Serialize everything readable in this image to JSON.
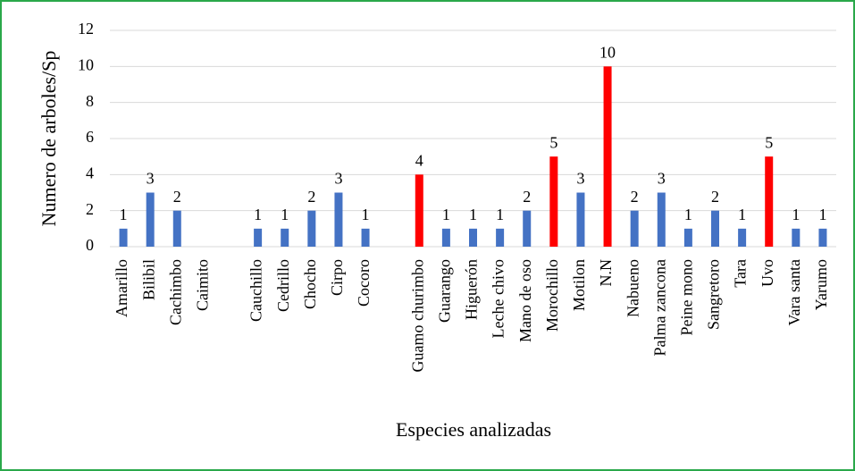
{
  "chart_data": {
    "type": "bar",
    "categories": [
      "Amarillo",
      "Bilibil",
      "Cachimbo",
      "Caimito",
      null,
      "Cauchillo",
      "Cedrillo",
      "Chocho",
      "Cirpo",
      "Cocoro",
      null,
      "Guamo churimbo",
      "Guarango",
      "Higuerón",
      "Leche chivo",
      "Mano de oso",
      "Morochillo",
      "Motilon",
      "N.N",
      "Nabueno",
      "Palma zancona",
      "Peine mono",
      "Sangretoro",
      "Tara",
      "Uvo",
      "Vara santa",
      "Yarumo"
    ],
    "values": [
      1,
      3,
      2,
      null,
      null,
      1,
      1,
      2,
      3,
      1,
      null,
      4,
      1,
      1,
      1,
      2,
      5,
      3,
      10,
      2,
      3,
      1,
      2,
      1,
      5,
      1,
      1
    ],
    "colors": [
      "#4472c4",
      "#4472c4",
      "#4472c4",
      "#4472c4",
      "#4472c4",
      "#4472c4",
      "#4472c4",
      "#4472c4",
      "#4472c4",
      "#4472c4",
      "#4472c4",
      "#ff0000",
      "#4472c4",
      "#4472c4",
      "#4472c4",
      "#4472c4",
      "#ff0000",
      "#4472c4",
      "#ff0000",
      "#4472c4",
      "#4472c4",
      "#4472c4",
      "#4472c4",
      "#4472c4",
      "#ff0000",
      "#4472c4",
      "#4472c4"
    ],
    "x_label": "Especies analizadas",
    "y_label": "Numero de arboles/Sp",
    "ylim": [
      0,
      12
    ],
    "yticks": [
      0,
      2,
      4,
      6,
      8,
      10,
      12
    ],
    "grid": true
  }
}
